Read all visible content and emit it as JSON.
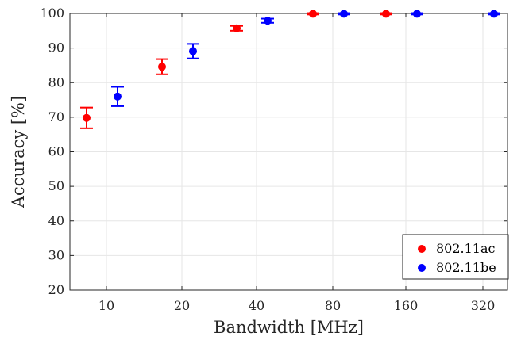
{
  "chart_data": {
    "type": "scatter",
    "xlabel": "Bandwidth [MHz]",
    "ylabel": "Accuracy [%]",
    "categories": [
      "10",
      "20",
      "40",
      "80",
      "160",
      "320"
    ],
    "ylim": [
      20,
      100
    ],
    "yticks": [
      20,
      30,
      40,
      50,
      60,
      70,
      80,
      90,
      100
    ],
    "grid": true,
    "legend_position": "bottom-right",
    "series": [
      {
        "name": "802.11ac",
        "color": "#ff0000",
        "points": [
          {
            "category": "10",
            "value": 69.8,
            "err_low": 3.0,
            "err_high": 3.0
          },
          {
            "category": "20",
            "value": 84.6,
            "err_low": 2.2,
            "err_high": 2.2
          },
          {
            "category": "40",
            "value": 95.7,
            "err_low": 0.7,
            "err_high": 0.7
          },
          {
            "category": "80",
            "value": 99.9,
            "err_low": 0.2,
            "err_high": 0.2
          },
          {
            "category": "160",
            "value": 99.9,
            "err_low": 0.2,
            "err_high": 0.2
          }
        ]
      },
      {
        "name": "802.11be",
        "color": "#0000ff",
        "points": [
          {
            "category": "10",
            "value": 76.0,
            "err_low": 2.8,
            "err_high": 2.8
          },
          {
            "category": "20",
            "value": 89.1,
            "err_low": 2.1,
            "err_high": 2.1
          },
          {
            "category": "40",
            "value": 97.9,
            "err_low": 0.6,
            "err_high": 0.6
          },
          {
            "category": "80",
            "value": 99.9,
            "err_low": 0.2,
            "err_high": 0.2
          },
          {
            "category": "160",
            "value": 99.9,
            "err_low": 0.2,
            "err_high": 0.2
          },
          {
            "category": "320",
            "value": 99.9,
            "err_low": 0.2,
            "err_high": 0.2
          }
        ]
      }
    ]
  }
}
